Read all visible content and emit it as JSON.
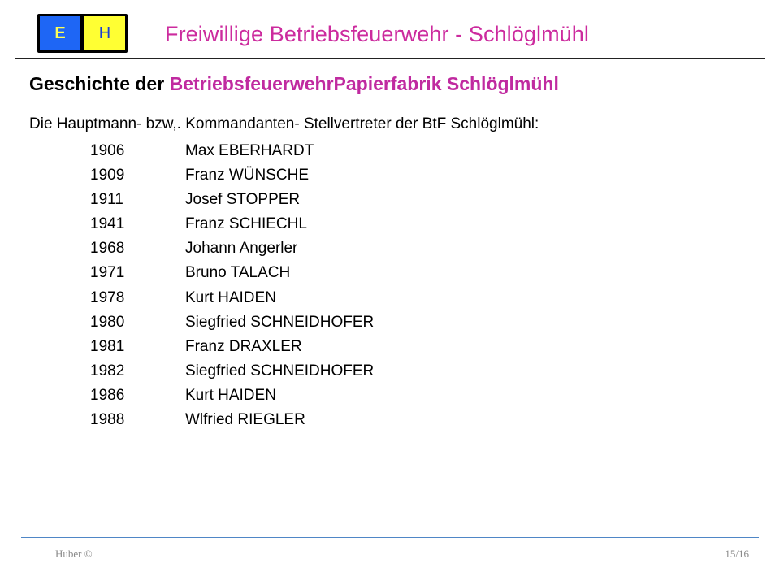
{
  "logo": {
    "left_letter": "E",
    "right_letter": "H"
  },
  "header": {
    "title": "Freiwillige Betriebsfeuerwehr - Schlöglmühl"
  },
  "heading": {
    "prefix": "Geschichte der ",
    "highlight": "BetriebsfeuerwehrPapierfabrik Schlöglmühl"
  },
  "intro": "Die Hauptmann- bzw,. Kommandanten- Stellvertreter der BtF Schlöglmühl:",
  "entries": [
    {
      "year": "1906",
      "name": "Max EBERHARDT"
    },
    {
      "year": "1909",
      "name": "Franz WÜNSCHE"
    },
    {
      "year": "1911",
      "name": "Josef STOPPER"
    },
    {
      "year": "1941",
      "name": "Franz SCHIECHL"
    },
    {
      "year": "1968",
      "name": "Johann Angerler"
    },
    {
      "year": "1971",
      "name": "Bruno TALACH"
    },
    {
      "year": "1978",
      "name": "Kurt HAIDEN"
    },
    {
      "year": "1980",
      "name": "Siegfried SCHNEIDHOFER"
    },
    {
      "year": "1981",
      "name": "Franz DRAXLER"
    },
    {
      "year": "1982",
      "name": "Siegfried SCHNEIDHOFER"
    },
    {
      "year": "1986",
      "name": "Kurt HAIDEN"
    },
    {
      "year": "1988",
      "name": "Wlfried RIEGLER"
    }
  ],
  "footer": {
    "author": "Huber  ©",
    "page": "15/16"
  },
  "colors": {
    "accent_magenta": "#cc2b9e",
    "logo_blue": "#1e66f5",
    "logo_yellow": "#ffff33",
    "footer_rule": "#4f86c6"
  }
}
